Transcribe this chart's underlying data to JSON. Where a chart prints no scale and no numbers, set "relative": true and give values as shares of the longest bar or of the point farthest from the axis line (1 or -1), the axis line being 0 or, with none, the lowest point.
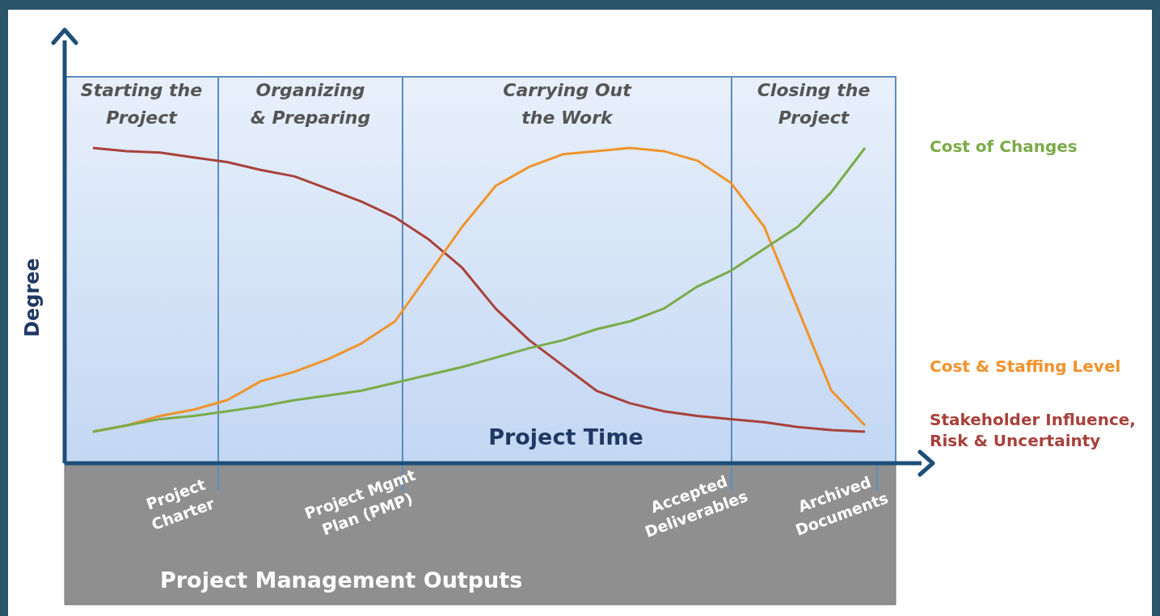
{
  "chart_data": {
    "type": "line",
    "relative": true,
    "xlabel": "Project Time",
    "ylabel": "Degree",
    "tick_labels": false,
    "categories": [
      null,
      null,
      null,
      null,
      null,
      null,
      null,
      null,
      null,
      null,
      null,
      null,
      null,
      null,
      null,
      null,
      null,
      null,
      null,
      null,
      null,
      null,
      null,
      null
    ],
    "series": [
      {
        "name": "Cost of Changes",
        "color": "#7aab48",
        "values": [
          0.1,
          0.12,
          0.14,
          0.15,
          0.165,
          0.18,
          0.2,
          0.215,
          0.23,
          0.255,
          0.28,
          0.305,
          0.335,
          0.365,
          0.39,
          0.425,
          0.45,
          0.49,
          0.56,
          0.61,
          0.68,
          0.75,
          0.86,
          1.0
        ]
      },
      {
        "name": "Cost & Staffing Level",
        "color": "#f0932b",
        "values": [
          0.1,
          0.12,
          0.15,
          0.17,
          0.2,
          0.26,
          0.29,
          0.33,
          0.38,
          0.45,
          0.6,
          0.75,
          0.88,
          0.94,
          0.98,
          0.99,
          1.0,
          0.99,
          0.96,
          0.89,
          0.75,
          0.49,
          0.23,
          0.12
        ]
      },
      {
        "name": "Stakeholder Influence,\nRisk & Uncertainty",
        "color": "#a8413b",
        "values": [
          1.0,
          0.99,
          0.985,
          0.97,
          0.955,
          0.93,
          0.91,
          0.87,
          0.83,
          0.78,
          0.71,
          0.62,
          0.49,
          0.39,
          0.31,
          0.23,
          0.19,
          0.165,
          0.15,
          0.14,
          0.13,
          0.115,
          0.105,
          0.1
        ]
      }
    ],
    "annotations": [
      "Starting the\nProject",
      "Organizing\n& Preparing",
      "Carrying Out\nthe Work",
      "Closing the\nProject",
      "Project\nCharter",
      "Project Mgmt\nPlan (PMP)",
      "Accepted\nDeliverables",
      "Archived\nDocuments",
      "Project Management Outputs"
    ]
  }
}
